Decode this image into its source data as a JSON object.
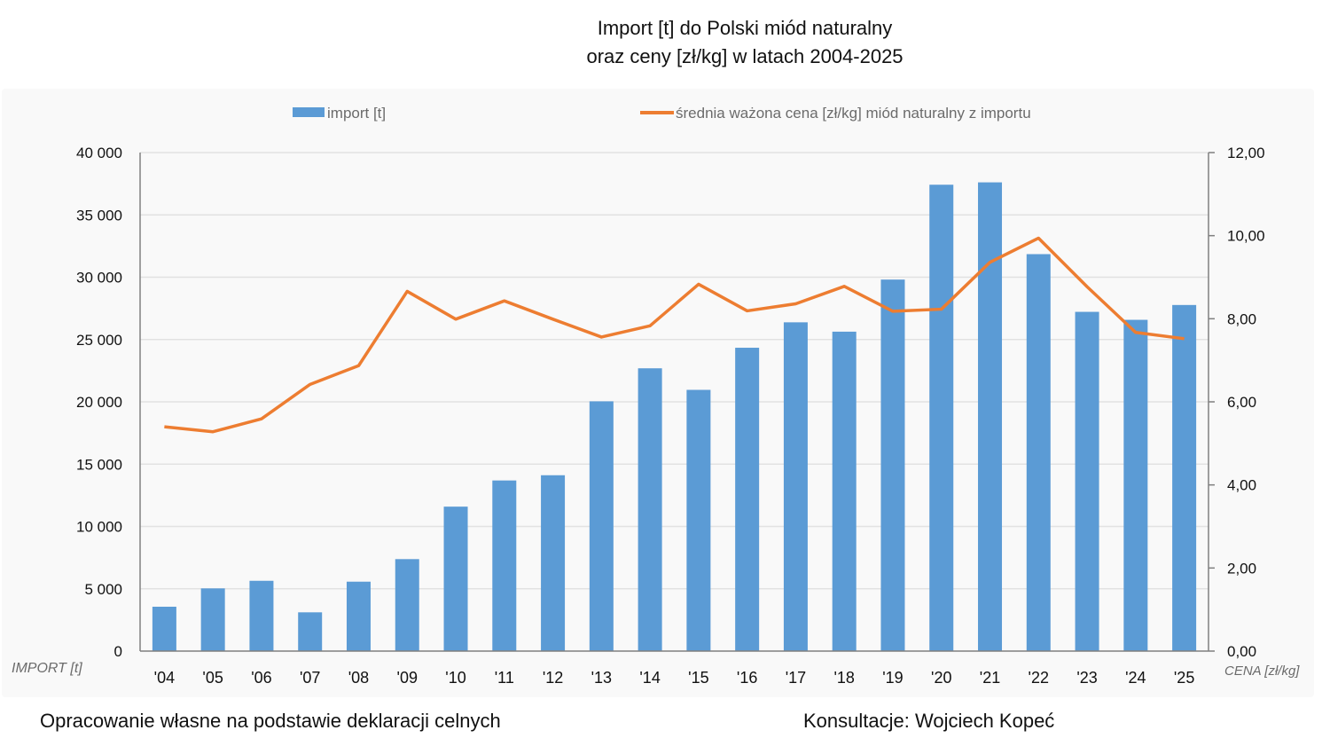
{
  "chart_data": {
    "type": "bar+line",
    "title": "Import [t] do Polski miód naturalny",
    "subtitle": "oraz ceny [zł/kg] w latach 2004-2025",
    "categories": [
      "'04",
      "'05",
      "'06",
      "'07",
      "'08",
      "'09",
      "'10",
      "'11",
      "'12",
      "'13",
      "'14",
      "'15",
      "'16",
      "'17",
      "'18",
      "'19",
      "'20",
      "'21",
      "'22",
      "'23",
      "'24",
      "'25"
    ],
    "series": [
      {
        "name": "import [t]",
        "type": "bar",
        "axis": "left",
        "color": "#5b9bd5",
        "values": [
          3560,
          5030,
          5640,
          3110,
          5570,
          7380,
          11590,
          13690,
          14110,
          20040,
          22690,
          20960,
          24340,
          26380,
          25630,
          29810,
          37420,
          37610,
          31850,
          27220,
          26580,
          27770
        ]
      },
      {
        "name": "średnia ważona cena [zł/kg] miód naturalny z importu",
        "type": "line",
        "axis": "right",
        "color": "#ed7d31",
        "values": [
          5.4,
          5.28,
          5.59,
          6.42,
          6.87,
          8.66,
          7.99,
          8.43,
          7.99,
          7.56,
          7.83,
          8.83,
          8.19,
          8.36,
          8.78,
          8.18,
          8.23,
          9.36,
          9.94,
          8.77,
          7.67,
          7.52
        ]
      }
    ],
    "y_left": {
      "label": "IMPORT [t]",
      "ylim": [
        0,
        40000
      ],
      "ticks": [
        0,
        5000,
        10000,
        15000,
        20000,
        25000,
        30000,
        35000,
        40000
      ],
      "tick_labels": [
        "0",
        "5 000",
        "10 000",
        "15 000",
        "20 000",
        "25 000",
        "30 000",
        "35 000",
        "40 000"
      ]
    },
    "y_right": {
      "label": "CENA [zł/kg]",
      "ylim": [
        0,
        12
      ],
      "ticks": [
        0,
        2,
        4,
        6,
        8,
        10,
        12
      ],
      "tick_labels": [
        "0,00",
        "2,00",
        "4,00",
        "6,00",
        "8,00",
        "10,00",
        "12,00"
      ]
    },
    "xlabel": "",
    "grid": true,
    "legend_position": "top"
  },
  "footer": {
    "left": "Opracowanie własne na podstawie deklaracji celnych",
    "right": "Konsultacje: Wojciech Kopeć"
  }
}
